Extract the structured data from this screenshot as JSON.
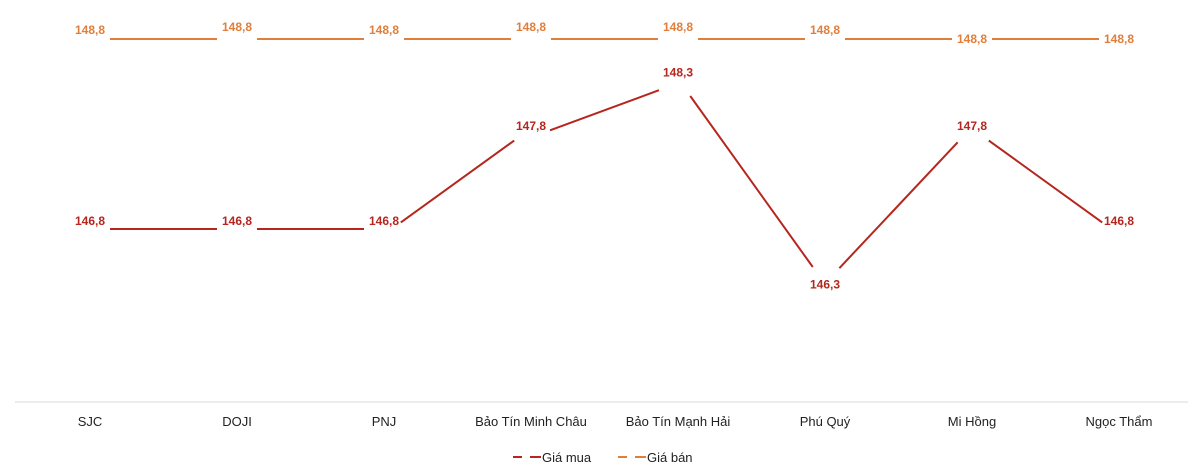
{
  "chart_data": {
    "type": "line",
    "title": "",
    "xlabel": "",
    "ylabel": "",
    "categories": [
      "SJC",
      "DOJI",
      "PNJ",
      "Bảo Tín Minh Châu",
      "Bảo Tín Mạnh Hải",
      "Phú Quý",
      "Mi Hồng",
      "Ngọc Thẩm"
    ],
    "series": [
      {
        "name": "Giá mua",
        "color": "#B5261E",
        "values": [
          146.8,
          146.8,
          146.8,
          147.8,
          148.3,
          146.3,
          147.8,
          146.8
        ],
        "labels": [
          "146,8",
          "146,8",
          "146,8",
          "147,8",
          "148,3",
          "146,3",
          "147,8",
          "146,8"
        ]
      },
      {
        "name": "Giá bán",
        "color": "#E07E3C",
        "values": [
          148.8,
          148.8,
          148.8,
          148.8,
          148.8,
          148.8,
          148.8,
          148.8
        ],
        "labels": [
          "148,8",
          "148,8",
          "148,8",
          "148,8",
          "148,8",
          "148,8",
          "148,8",
          "148,8"
        ]
      }
    ],
    "grid": false,
    "legend_position": "bottom",
    "ylim": [
      144.6,
      149.2
    ]
  }
}
